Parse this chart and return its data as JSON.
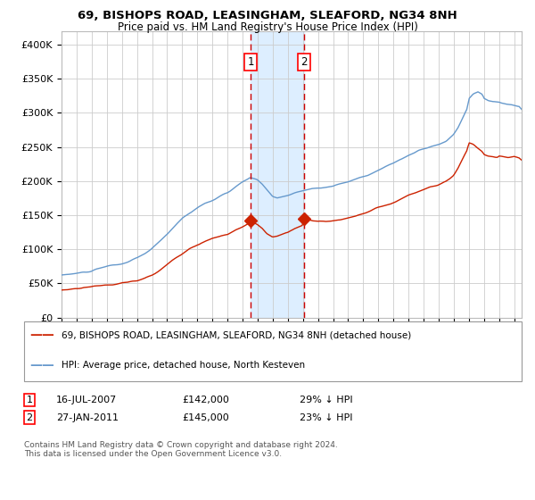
{
  "title1": "69, BISHOPS ROAD, LEASINGHAM, SLEAFORD, NG34 8NH",
  "title2": "Price paid vs. HM Land Registry's House Price Index (HPI)",
  "legend_red": "69, BISHOPS ROAD, LEASINGHAM, SLEAFORD, NG34 8NH (detached house)",
  "legend_blue": "HPI: Average price, detached house, North Kesteven",
  "sale1_date": "16-JUL-2007",
  "sale1_price": "£142,000",
  "sale1_hpi": "29% ↓ HPI",
  "sale1_year": 2007.54,
  "sale1_value": 142000,
  "sale2_date": "27-JAN-2011",
  "sale2_price": "£145,000",
  "sale2_hpi": "23% ↓ HPI",
  "sale2_year": 2011.07,
  "sale2_value": 145000,
  "ylabel_ticks": [
    "£0",
    "£50K",
    "£100K",
    "£150K",
    "£200K",
    "£250K",
    "£300K",
    "£350K",
    "£400K"
  ],
  "ytick_values": [
    0,
    50000,
    100000,
    150000,
    200000,
    250000,
    300000,
    350000,
    400000
  ],
  "ylim": [
    0,
    420000
  ],
  "xlim_left": 1995,
  "xlim_right": 2025.5,
  "background_color": "#ffffff",
  "plot_bg_color": "#ffffff",
  "grid_color": "#cccccc",
  "blue_color": "#6699cc",
  "red_color": "#cc2200",
  "shade_color": "#ddeeff",
  "vline_color": "#cc0000",
  "footnote": "Contains HM Land Registry data © Crown copyright and database right 2024.\nThis data is licensed under the Open Government Licence v3.0."
}
